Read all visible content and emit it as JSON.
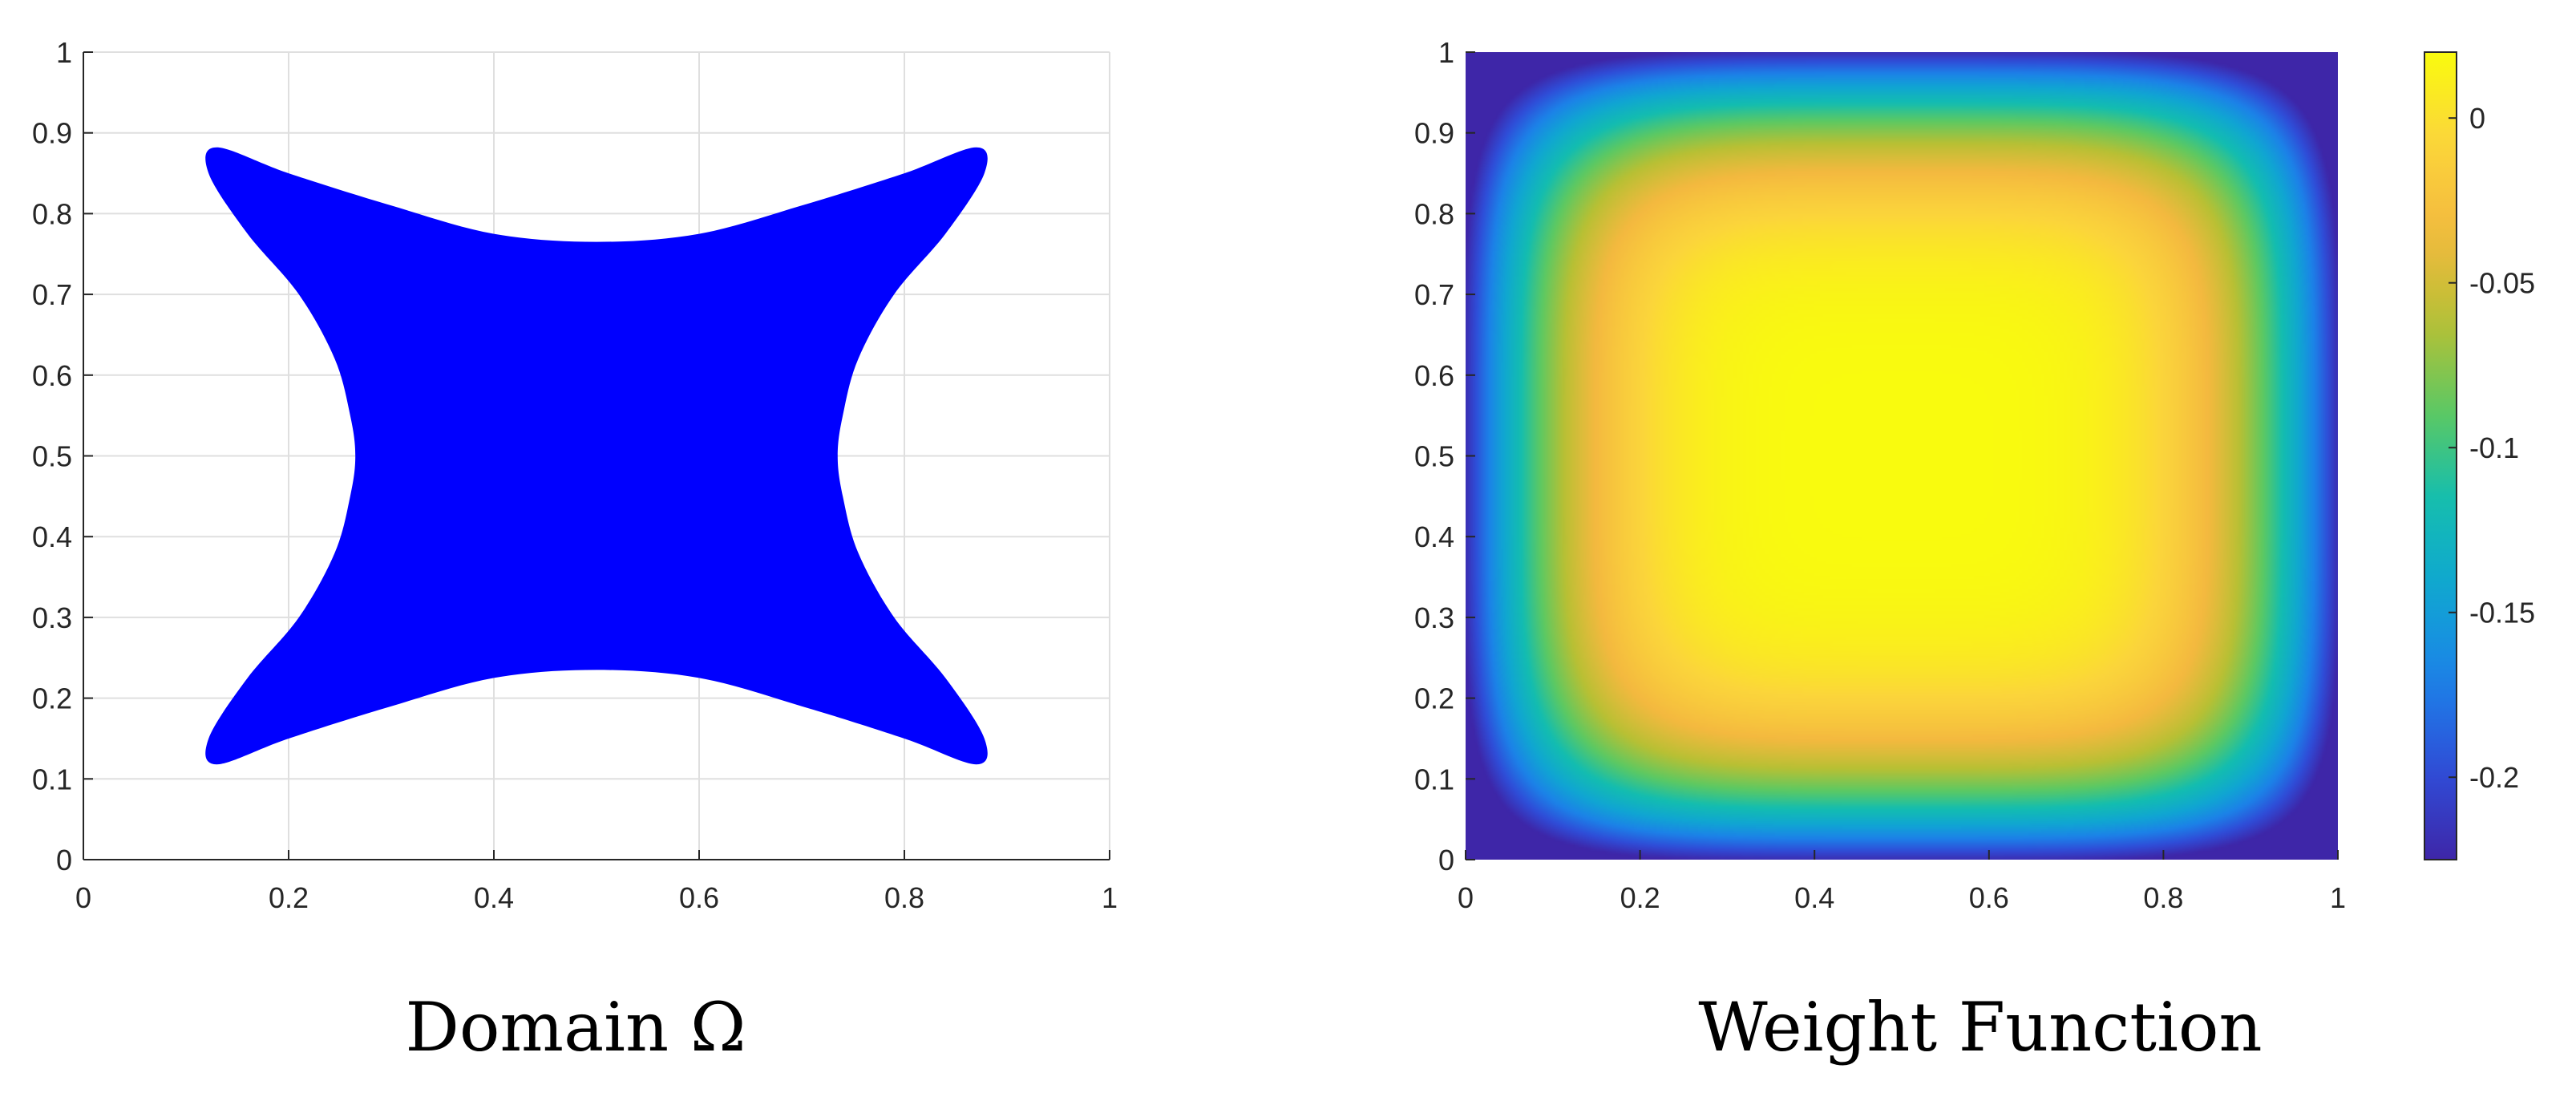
{
  "chart_data": [
    {
      "type": "area",
      "title": "",
      "caption": "Domain Ω",
      "xlabel": "",
      "ylabel": "",
      "xlim": [
        0,
        1
      ],
      "ylim": [
        0,
        1
      ],
      "grid": true,
      "x_ticks": [
        "0",
        "0.2",
        "0.4",
        "0.6",
        "0.8",
        "1"
      ],
      "y_ticks": [
        "0",
        "0.1",
        "0.2",
        "0.3",
        "0.4",
        "0.5",
        "0.6",
        "0.7",
        "0.8",
        "0.9",
        "1"
      ],
      "fill_color": "#0000ff",
      "shape_outline_top_half": [
        [
          0.5,
          0.765
        ],
        [
          0.6,
          0.775
        ],
        [
          0.7,
          0.81
        ],
        [
          0.8,
          0.85
        ],
        [
          0.87,
          0.882
        ],
        [
          0.878,
          0.85
        ],
        [
          0.84,
          0.775
        ],
        [
          0.79,
          0.7
        ],
        [
          0.755,
          0.62
        ],
        [
          0.74,
          0.55
        ],
        [
          0.735,
          0.5
        ]
      ],
      "symmetry": "mirror about x=0.5 and y=0.5"
    },
    {
      "type": "heatmap",
      "title": "",
      "caption": "Weight Function",
      "xlabel": "",
      "ylabel": "",
      "xlim": [
        0,
        1
      ],
      "ylim": [
        0,
        1
      ],
      "grid": false,
      "x_ticks": [
        "0",
        "0.2",
        "0.4",
        "0.6",
        "0.8",
        "1"
      ],
      "y_ticks": [
        "0",
        "0.1",
        "0.2",
        "0.3",
        "0.4",
        "0.5",
        "0.6",
        "0.7",
        "0.8",
        "0.9",
        "1"
      ],
      "colorbar": {
        "range": [
          -0.225,
          0.02
        ],
        "ticks": [
          0,
          -0.05,
          -0.1,
          -0.15,
          -0.2
        ],
        "tick_labels": [
          "0",
          "-0.05",
          "-0.1",
          "-0.15",
          "-0.2"
        ],
        "colormap": "parula",
        "stops": [
          "#3e26a8",
          "#2f4dd8",
          "#1c82e8",
          "#10a6d2",
          "#13bdb0",
          "#5dc962",
          "#b8c034",
          "#f4b93f",
          "#fbd53b",
          "#f9fb0e"
        ]
      },
      "value_samples": {
        "center_0.5_0.5": 0.02,
        "corner_regions": -0.02,
        "edge_midpoints_min": -0.225
      }
    }
  ]
}
